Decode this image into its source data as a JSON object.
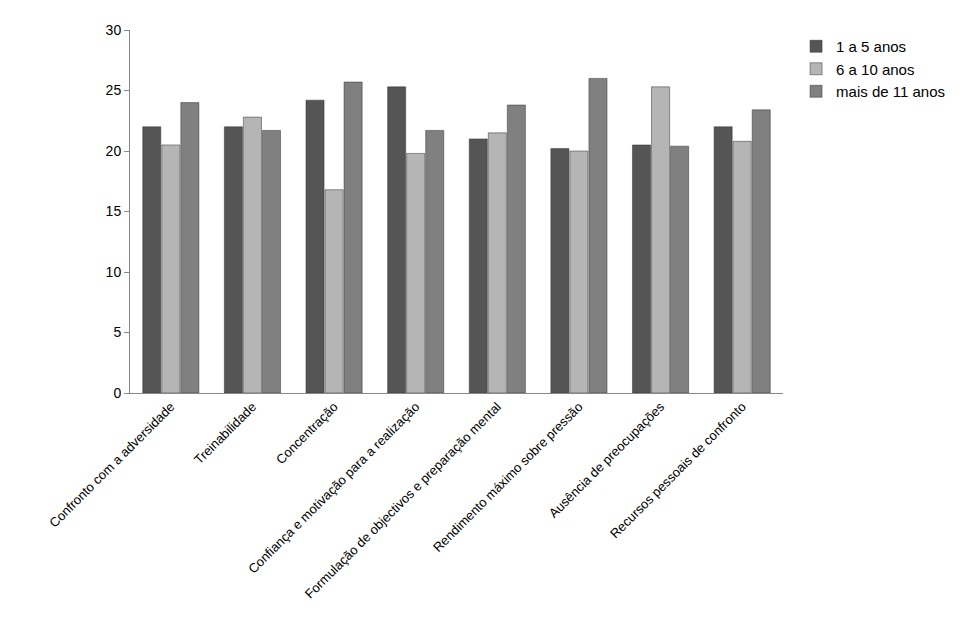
{
  "chart_data": {
    "type": "bar",
    "categories": [
      "Confronto com a adversidade",
      "Treinabilidade",
      "Concentração",
      "Confiança e motivação para a realização",
      "Formulação de objectivos e preparação mental",
      "Rendimento máximo sobre pressão",
      "Ausência de preocupações",
      "Recursos pessoais de confronto"
    ],
    "series": [
      {
        "name": "1 a 5 anos",
        "color": "#555555",
        "values": [
          22,
          22,
          24.2,
          25.3,
          21,
          20.2,
          20.5,
          22
        ]
      },
      {
        "name": "6 a 10 anos",
        "color": "#b5b5b5",
        "values": [
          20.5,
          22.8,
          16.8,
          19.8,
          21.5,
          20,
          25.3,
          20.8
        ]
      },
      {
        "name": "mais de 11 anos",
        "color": "#808080",
        "values": [
          24,
          21.7,
          25.7,
          21.7,
          23.8,
          26,
          20.4,
          23.4
        ]
      }
    ],
    "ylim": [
      0,
      30
    ],
    "yticks": [
      0,
      5,
      10,
      15,
      20,
      25,
      30
    ],
    "grid": false,
    "legend": "top right"
  }
}
